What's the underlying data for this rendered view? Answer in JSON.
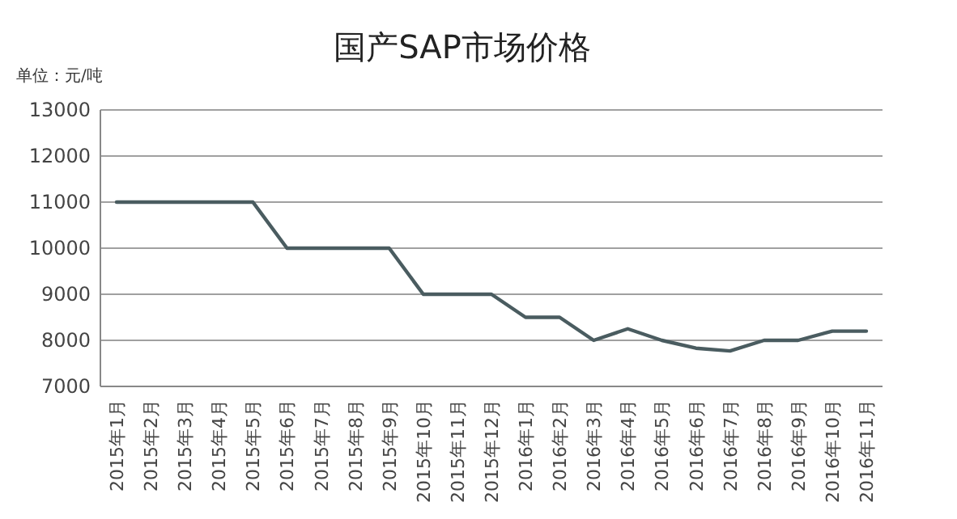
{
  "chart_data": {
    "type": "line",
    "title": "国产SAP市场价格",
    "ylabel": "单位：元/吨",
    "categories": [
      "2015年1月",
      "2015年2月",
      "2015年3月",
      "2015年4月",
      "2015年5月",
      "2015年6月",
      "2015年7月",
      "2015年8月",
      "2015年9月",
      "2015年10月",
      "2015年11月",
      "2015年12月",
      "2016年1月",
      "2016年2月",
      "2016年3月",
      "2016年4月",
      "2016年5月",
      "2016年6月",
      "2016年7月",
      "2016年8月",
      "2016年9月",
      "2016年10月",
      "2016年11月"
    ],
    "series": [
      {
        "color": "#4a5c60",
        "values": [
          11000,
          11000,
          11000,
          11000,
          11000,
          10000,
          10000,
          10000,
          10000,
          9000,
          9000,
          9000,
          8500,
          8500,
          8000,
          8250,
          8000,
          7830,
          7770,
          8000,
          8000,
          8200,
          8200
        ]
      }
    ],
    "ylim": [
      7000,
      13000
    ],
    "yticks": [
      7000,
      8000,
      9000,
      10000,
      11000,
      12000,
      13000
    ],
    "grid": "y",
    "marker": "none",
    "line_style": "solid"
  }
}
